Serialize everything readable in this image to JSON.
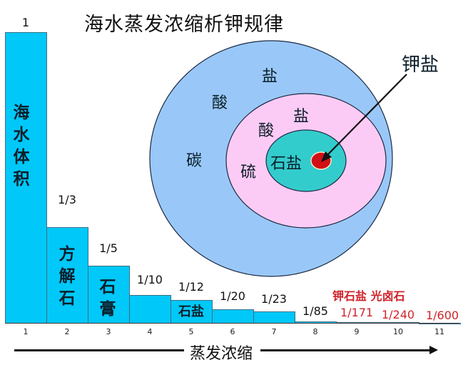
{
  "title": "海水蒸发浓缩析钾规律",
  "chart_data": {
    "type": "bar",
    "title": "海水蒸发浓缩析钾规律",
    "xlabel": "蒸发浓缩",
    "ylabel": "海水体积",
    "categories": [
      "1",
      "2",
      "3",
      "4",
      "5",
      "6",
      "7",
      "8",
      "9",
      "10",
      "11"
    ],
    "value_labels": [
      "1",
      "1/3",
      "1/5",
      "1/10",
      "1/12",
      "1/20",
      "1/23",
      "1/85",
      "1/171",
      "1/240",
      "1/600"
    ],
    "values": [
      1,
      0.3333,
      0.2,
      0.1,
      0.0833,
      0.05,
      0.0435,
      0.0118,
      0.0058,
      0.0042,
      0.0017
    ],
    "bar_annotations": [
      {
        "bar": 1,
        "text": "海水体积"
      },
      {
        "bar": 2,
        "text": "方解石"
      },
      {
        "bar": 3,
        "text": "石膏"
      },
      {
        "bar": 5,
        "text": "石盐"
      }
    ],
    "red_annotation": "钾石盐 光卤石",
    "red_labels_bars": [
      9,
      10,
      11
    ],
    "ylim": [
      0,
      1
    ],
    "grid": false,
    "legend": "none"
  },
  "diagram": {
    "outer_ring": {
      "label_chars": [
        "碳",
        "酸",
        "盐"
      ],
      "color": "#99c8f8"
    },
    "middle_ring": {
      "label_chars": [
        "硫",
        "酸",
        "盐"
      ],
      "color": "#fccbf5"
    },
    "inner_ring": {
      "label": "石盐",
      "color": "#33cccc"
    },
    "core": {
      "label": "钾盐",
      "color": "#d10f14"
    }
  },
  "colors": {
    "bar": "#00c8f8",
    "red_text": "#d0242b"
  }
}
